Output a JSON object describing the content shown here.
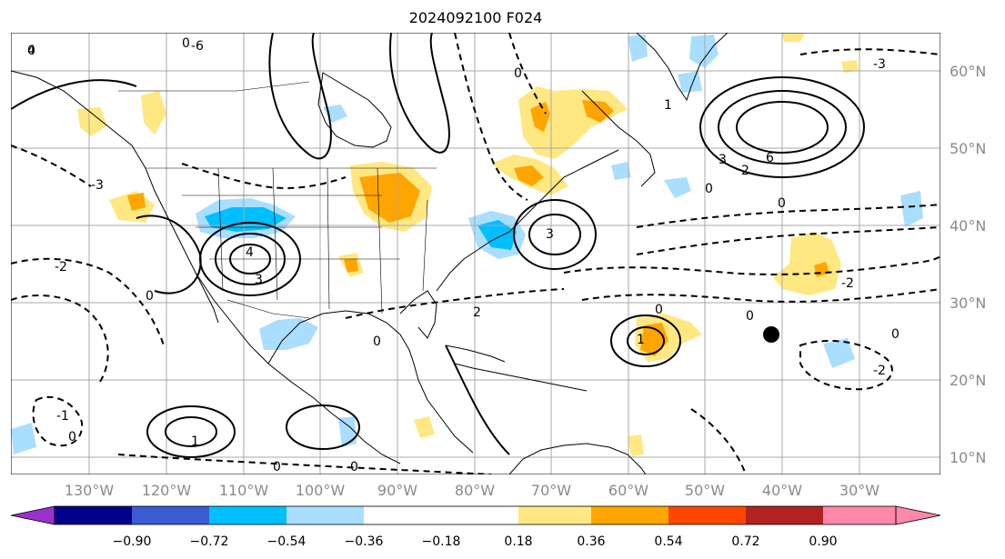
{
  "title": "2024092100 F024",
  "map": {
    "lon_labels": [
      "130°W",
      "120°W",
      "110°W",
      "100°W",
      "90°W",
      "80°W",
      "70°W",
      "60°W",
      "50°W",
      "40°W",
      "30°W"
    ],
    "lat_labels": [
      "60°N",
      "50°N",
      "40°N",
      "30°N",
      "20°N",
      "10°N"
    ],
    "extent": {
      "lon": [
        -136,
        -15
      ],
      "lat": [
        7,
        65
      ]
    },
    "grid": true,
    "storm_marker": {
      "lon": -42,
      "lat": 26
    }
  },
  "colorbar": {
    "ticks": [
      "−0.90",
      "−0.72",
      "−0.54",
      "−0.36",
      "−0.18",
      "0.18",
      "0.36",
      "0.54",
      "0.72",
      "0.90"
    ],
    "colors": [
      "#9932cc",
      "#00008b",
      "#3a5bd1",
      "#00bfff",
      "#aadeff",
      "#ffffff",
      "#ffe882",
      "#ffa500",
      "#ff4500",
      "#b22222",
      "#ff88aa"
    ]
  },
  "contour_labels": [
    "4",
    "3",
    "2",
    "1",
    "0",
    "-1",
    "-2",
    "-3",
    "-6",
    "6"
  ]
}
